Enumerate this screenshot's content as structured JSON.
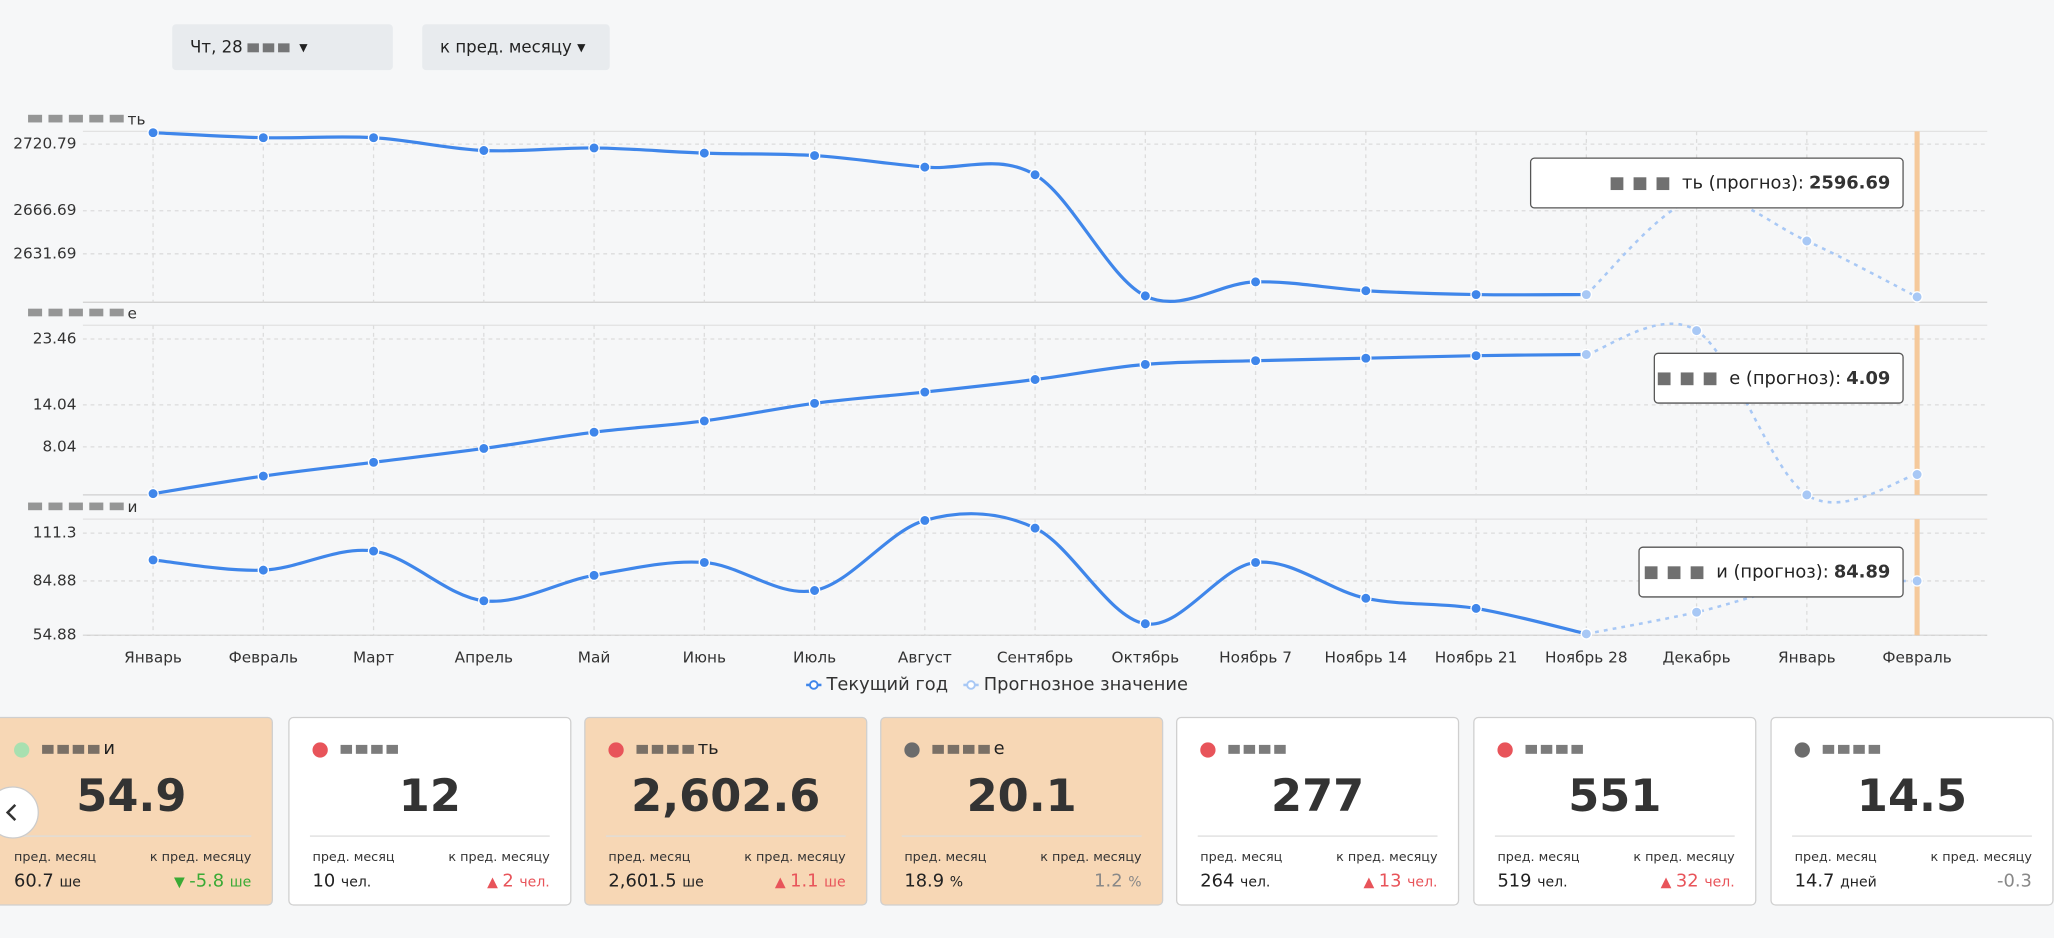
{
  "controls": {
    "date": "Чт, 28",
    "compare": "к пред. месяцу"
  },
  "chart_data": [
    {
      "type": "line",
      "title": "ть",
      "ylim": [
        2592.3,
        2731.15
      ],
      "yticks": [
        2631.69,
        2666.69,
        2720.79
      ],
      "tooltip_label": "ть (прогноз):",
      "series": [
        {
          "color": "#3f86ea",
          "values": [
            2730.1,
            2726,
            2726,
            2715.6,
            2717.7,
            2713.5,
            2711.5,
            2702.1,
            2695.9,
            2597.5,
            2608.9,
            2601.7,
            2598.6,
            2598.6,
            null,
            null,
            null
          ]
        },
        {
          "color": "#a8c8f5",
          "values": [
            null,
            null,
            null,
            null,
            null,
            null,
            null,
            null,
            null,
            null,
            null,
            null,
            null,
            2598.6,
            2677,
            2642.1,
            2596.69
          ]
        }
      ]
    },
    {
      "type": "line",
      "title": "е",
      "ylim": [
        1.17,
        25.43
      ],
      "yticks": [
        8.04,
        14.04,
        23.46
      ],
      "tooltip_label": "е (прогноз):",
      "series": [
        {
          "color": "#3f86ea",
          "values": [
            1.35,
            3.86,
            5.83,
            7.81,
            10.14,
            11.75,
            14.27,
            15.88,
            17.67,
            19.83,
            20.36,
            20.72,
            21.08,
            21.25,
            null,
            null,
            null
          ]
        },
        {
          "color": "#a8c8f5",
          "values": [
            null,
            null,
            null,
            null,
            null,
            null,
            null,
            null,
            null,
            null,
            null,
            null,
            null,
            21.25,
            24.66,
            1.17,
            4.09
          ]
        }
      ]
    },
    {
      "type": "line",
      "title": "и",
      "ylim": [
        54.88,
        119.06
      ],
      "yticks": [
        54.88,
        84.88,
        111.3
      ],
      "tooltip_label": "и (прогноз):",
      "categories": [
        "Январь",
        "Февраль",
        "Март",
        "Апрель",
        "Май",
        "Июнь",
        "Июль",
        "Август",
        "Сентябрь",
        "Октябрь",
        "Ноябрь 7",
        "Ноябрь 14",
        "Ноябрь 21",
        "Ноябрь 28",
        "Декабрь",
        "Январь",
        "Февраль"
      ],
      "series": [
        {
          "name": "Текущий год",
          "color": "#3f86ea",
          "values": [
            96.5,
            90.85,
            101.4,
            73.9,
            88.0,
            95.1,
            79.6,
            118.35,
            114.1,
            61.2,
            95.1,
            75.3,
            69.7,
            55.6,
            null,
            null,
            null
          ]
        },
        {
          "name": "Прогнозное значение",
          "color": "#a8c8f5",
          "values": [
            null,
            null,
            null,
            null,
            null,
            null,
            null,
            null,
            null,
            null,
            null,
            null,
            null,
            55.6,
            67.6,
            83.1,
            84.89
          ]
        }
      ]
    }
  ],
  "cards": [
    {
      "name": "и",
      "value": "54.9",
      "prev_label": "пред. месяц",
      "change_label": "к пред. месяцу",
      "prev": "60.7",
      "prev_unit": "ше",
      "change": "-5.8",
      "change_unit": "ше",
      "trend": "down",
      "dot": "#a8e0b0",
      "bg": "#f7d7b5"
    },
    {
      "value": "12",
      "prev_label": "пред. месяц",
      "change_label": "к пред. месяцу",
      "prev": "10",
      "prev_unit": "чел.",
      "change": "2",
      "change_unit": "чел.",
      "trend": "up",
      "dot": "#e8545a",
      "bg": "#ffffff"
    },
    {
      "name": "ть",
      "value": "2,602.6",
      "prev_label": "пред. месяц",
      "change_label": "к пред. месяцу",
      "prev": "2,601.5",
      "prev_unit": "ше",
      "change": "1.1",
      "change_unit": "ше",
      "trend": "up",
      "dot": "#e8545a",
      "bg": "#f7d7b5"
    },
    {
      "name": "е",
      "value": "20.1",
      "prev_label": "пред. месяц",
      "change_label": "к пред. месяцу",
      "prev": "18.9",
      "prev_unit": "%",
      "change": "1.2",
      "change_unit": "%",
      "trend": "flat",
      "dot": "#6c6c6c",
      "bg": "#f7d7b5"
    },
    {
      "value": "277",
      "prev_label": "пред. месяц",
      "change_label": "к пред. месяцу",
      "prev": "264",
      "prev_unit": "чел.",
      "change": "13",
      "change_unit": "чел.",
      "trend": "up",
      "dot": "#e8545a",
      "bg": "#ffffff"
    },
    {
      "value": "551",
      "prev_label": "пред. месяц",
      "change_label": "к пред. месяцу",
      "prev": "519",
      "prev_unit": "чел.",
      "change": "32",
      "change_unit": "чел.",
      "trend": "up",
      "dot": "#e8545a",
      "bg": "#ffffff"
    },
    {
      "value": "14.5",
      "prev_label": "пред. месяц",
      "change_label": "к пред. месяцу",
      "prev": "14.7",
      "prev_unit": "дней",
      "change": "-0.3",
      "change_unit": "",
      "trend": "flat",
      "dot": "#6c6c6c",
      "bg": "#ffffff"
    }
  ]
}
